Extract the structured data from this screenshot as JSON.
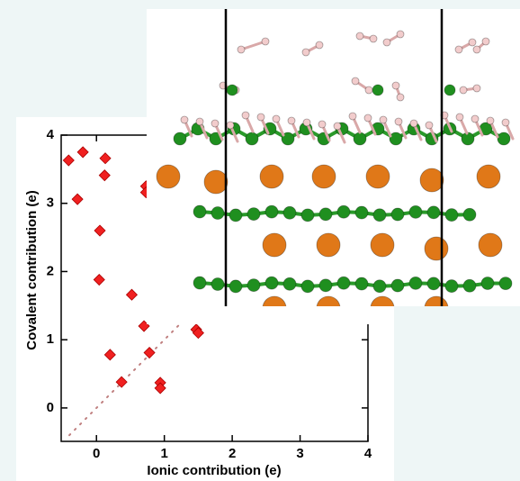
{
  "chart_data": {
    "type": "scatter",
    "x_label": "Ionic contribution (e)",
    "y_label": "Covalent contribution (e)",
    "x": [
      -0.41,
      -0.2,
      0.13,
      0.12,
      -0.28,
      0.73,
      0.73,
      0.05,
      0.04,
      0.52,
      0.7,
      1.47,
      1.5,
      0.78,
      0.2,
      0.37,
      0.94,
      0.94
    ],
    "values": [
      3.63,
      3.75,
      3.66,
      3.41,
      3.06,
      3.25,
      3.16,
      2.6,
      1.88,
      1.66,
      1.2,
      1.15,
      1.1,
      0.81,
      0.78,
      0.38,
      0.37,
      0.29
    ],
    "color": "#f02020",
    "marker": "diamond",
    "reference_line": {
      "x": [
        -0.4,
        1.45
      ],
      "y": [
        -0.4,
        1.45
      ],
      "color": "#c08080"
    },
    "xlim": [
      -0.52,
      4
    ],
    "ylim": [
      -0.49,
      4
    ],
    "xticks": [
      0,
      1,
      2,
      3,
      4
    ],
    "yticks": [
      0,
      1,
      2,
      3,
      4
    ]
  }
}
